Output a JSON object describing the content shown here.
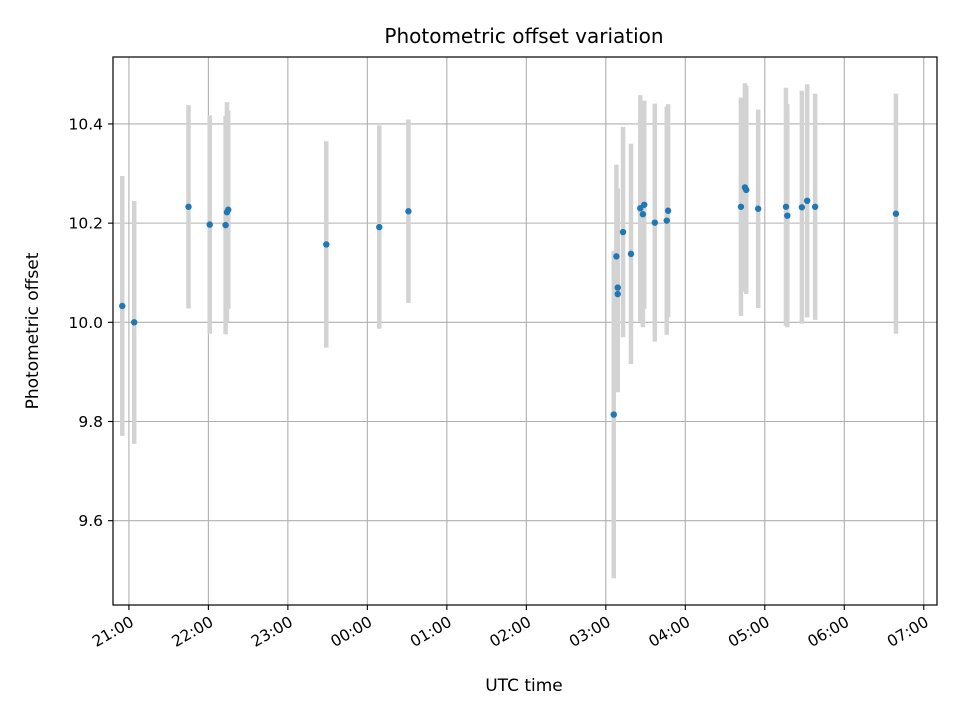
{
  "chart_data": {
    "type": "scatter",
    "title": "Photometric offset variation",
    "xlabel": "UTC time",
    "ylabel": "Photometric offset",
    "x_axis": "time",
    "x_ticks": [
      "21:00",
      "22:00",
      "23:00",
      "00:00",
      "01:00",
      "02:00",
      "03:00",
      "04:00",
      "05:00",
      "06:00",
      "07:00"
    ],
    "xlim": [
      "20:48",
      "07:10"
    ],
    "y_ticks": [
      "9.6",
      "9.8",
      "10.0",
      "10.2",
      "10.4"
    ],
    "ylim": [
      9.43,
      10.535
    ],
    "grid": true,
    "point_color": "#1f77b4",
    "errorbar_color": "#d3d3d3",
    "series": [
      {
        "points": [
          {
            "x": "20:55",
            "y": 10.033,
            "err": 0.262
          },
          {
            "x": "21:04",
            "y": 10.0,
            "err": 0.245
          },
          {
            "x": "21:45",
            "y": 10.233,
            "err": 0.205
          },
          {
            "x": "22:01",
            "y": 10.197,
            "err": 0.22
          },
          {
            "x": "22:13",
            "y": 10.196,
            "err": 0.22
          },
          {
            "x": "22:14",
            "y": 10.222,
            "err": 0.222
          },
          {
            "x": "22:15",
            "y": 10.227,
            "err": 0.2
          },
          {
            "x": "23:29",
            "y": 10.157,
            "err": 0.208
          },
          {
            "x": "00:09",
            "y": 10.192,
            "err": 0.205
          },
          {
            "x": "00:31",
            "y": 10.224,
            "err": 0.185
          },
          {
            "x": "03:06",
            "y": 9.814,
            "err": 0.33
          },
          {
            "x": "03:08",
            "y": 10.133,
            "err": 0.185
          },
          {
            "x": "03:09",
            "y": 10.07,
            "err": 0.2
          },
          {
            "x": "03:09",
            "y": 10.057,
            "err": 0.198
          },
          {
            "x": "03:13",
            "y": 10.182,
            "err": 0.212
          },
          {
            "x": "03:19",
            "y": 10.138,
            "err": 0.222
          },
          {
            "x": "03:26",
            "y": 10.23,
            "err": 0.228
          },
          {
            "x": "03:28",
            "y": 10.218,
            "err": 0.228
          },
          {
            "x": "03:29",
            "y": 10.237,
            "err": 0.21
          },
          {
            "x": "03:37",
            "y": 10.201,
            "err": 0.24
          },
          {
            "x": "03:46",
            "y": 10.205,
            "err": 0.23
          },
          {
            "x": "03:47",
            "y": 10.225,
            "err": 0.215
          },
          {
            "x": "04:42",
            "y": 10.233,
            "err": 0.22
          },
          {
            "x": "04:45",
            "y": 10.272,
            "err": 0.21
          },
          {
            "x": "04:46",
            "y": 10.267,
            "err": 0.21
          },
          {
            "x": "04:55",
            "y": 10.229,
            "err": 0.2
          },
          {
            "x": "05:16",
            "y": 10.233,
            "err": 0.24
          },
          {
            "x": "05:17",
            "y": 10.215,
            "err": 0.225
          },
          {
            "x": "05:28",
            "y": 10.232,
            "err": 0.235
          },
          {
            "x": "05:32",
            "y": 10.245,
            "err": 0.235
          },
          {
            "x": "05:38",
            "y": 10.233,
            "err": 0.228
          },
          {
            "x": "06:39",
            "y": 10.219,
            "err": 0.242
          }
        ]
      }
    ]
  }
}
